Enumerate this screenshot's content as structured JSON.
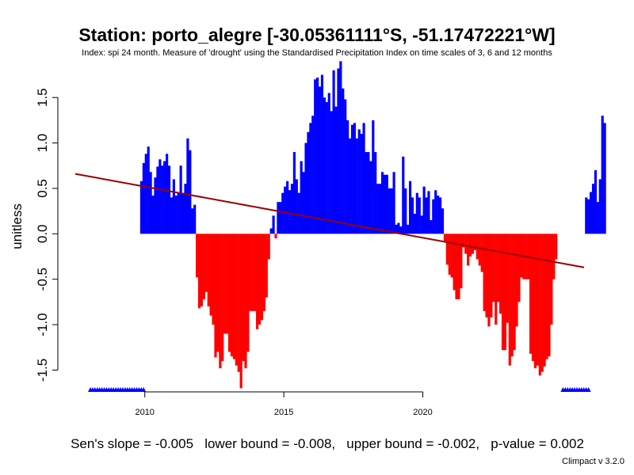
{
  "chart_data": {
    "type": "bar",
    "title": "Station: porto_alegre [-30.05361111°S, -51.17472221°W]",
    "subtitle": "Index: spi 24 month. Measure of 'drought' using the Standardised Precipitation Index on time scales of 3, 6 and 12 months",
    "ylabel": "unitless",
    "xlabel": "",
    "xlim": [
      2007.5,
      2025.8
    ],
    "ylim": [
      -1.74,
      1.92
    ],
    "x_ticks": [
      2010,
      2015,
      2020
    ],
    "x_tick_labels": [
      "2010",
      "2015",
      "2020"
    ],
    "y_ticks": [
      -1.5,
      -1.0,
      -0.5,
      0.0,
      0.5,
      1.0,
      1.5
    ],
    "y_tick_labels": [
      "-1.5",
      "-1.0",
      "-0.5",
      "0.0",
      "0.5",
      "1.0",
      "1.5"
    ],
    "positive_color": "#0000ff",
    "negative_color": "#ff0000",
    "trend_color": "#990000",
    "missing_marker_color": "#0000ff",
    "start": [
      2009,
      11
    ],
    "values": [
      0.58,
      0.78,
      0.88,
      0.96,
      0.68,
      0.42,
      0.62,
      0.74,
      0.82,
      0.75,
      0.8,
      0.88,
      0.75,
      0.4,
      0.6,
      0.42,
      0.45,
      0.75,
      0.45,
      0.55,
      1.05,
      0.92,
      0.28,
      0.32,
      -0.48,
      -0.82,
      -0.8,
      -0.72,
      -0.64,
      -0.8,
      -0.9,
      -1.0,
      -1.36,
      -1.3,
      -1.48,
      -1.4,
      -1.1,
      -1.1,
      -1.3,
      -1.35,
      -1.38,
      -1.45,
      -1.52,
      -1.7,
      -1.4,
      -1.48,
      -1.3,
      -0.85,
      -0.85,
      -0.85,
      -1.05,
      -1.0,
      -0.95,
      -0.85,
      -0.7,
      -0.28,
      0.06,
      0.2,
      -0.05,
      0.35,
      0.35,
      0.45,
      0.52,
      0.58,
      0.48,
      0.55,
      0.9,
      0.6,
      0.45,
      0.8,
      0.68,
      1.0,
      1.12,
      1.22,
      1.3,
      1.7,
      1.72,
      1.62,
      1.75,
      1.5,
      1.45,
      1.55,
      1.35,
      1.8,
      1.4,
      1.82,
      1.9,
      1.6,
      1.48,
      1.25,
      1.05,
      1.2,
      1.22,
      1.05,
      1.15,
      1.1,
      1.22,
      0.9,
      0.9,
      0.8,
      1.25,
      0.9,
      0.55,
      0.55,
      0.68,
      0.65,
      0.65,
      0.5,
      0.5,
      0.68,
      0.1,
      0.12,
      0.08,
      0.85,
      0.5,
      0.1,
      0.58,
      0.4,
      0.22,
      0.45,
      0.4,
      0.2,
      0.52,
      0.4,
      0.47,
      0.15,
      0.38,
      0.48,
      0.42,
      0.4,
      0.28,
      -0.08,
      -0.34,
      -0.45,
      -0.48,
      -0.62,
      -0.72,
      -0.72,
      -0.6,
      -0.15,
      -0.22,
      -0.35,
      -0.25,
      -0.22,
      -0.18,
      -0.28,
      -0.35,
      -0.42,
      -0.85,
      -0.92,
      -1.02,
      -0.92,
      -0.75,
      -1.0,
      -0.75,
      -0.88,
      -1.28,
      -1.28,
      -0.98,
      -1.45,
      -1.35,
      -1.28,
      -1.02,
      -0.75,
      -0.48,
      -0.5,
      -0.5,
      -0.5,
      -1.32,
      -1.4,
      -1.48,
      -1.45,
      -1.56,
      -1.52,
      -1.46,
      -1.38,
      -1.35,
      -1.0,
      -0.5,
      -0.28,
      0.0,
      0.0,
      0.0,
      0.0,
      0.0,
      0.0,
      0.0,
      0.0,
      0.0,
      0.0,
      0.0,
      0.0,
      0.4,
      0.38,
      0.46,
      0.55,
      0.7,
      0.35,
      0.6,
      1.3,
      1.22
    ],
    "missing_years": [
      2008,
      2009,
      2025
    ],
    "trend": {
      "x": [
        2007.5,
        2025.8
      ],
      "y": [
        0.66,
        -0.37
      ],
      "sens_slope": -0.005
    }
  },
  "footer": {
    "stats": "Sen's slope = -0.005   lower bound = -0.008,   upper bound = -0.002,   p-value = 0.002",
    "version": "Climpact v 3.2.0"
  }
}
